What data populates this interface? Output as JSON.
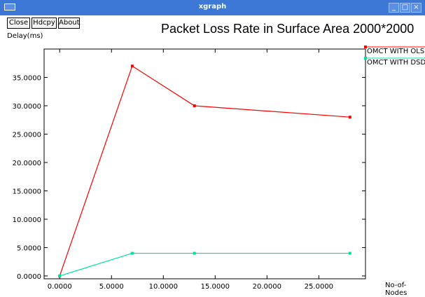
{
  "window": {
    "title": "xgraph"
  },
  "toolbar": {
    "close_label": "Close",
    "hdcpy_label": "Hdcpy",
    "about_label": "About"
  },
  "icons": {
    "minimize": "minimize-icon",
    "maximize": "maximize-icon",
    "close": "close-icon",
    "system_menu": "system-menu-icon"
  },
  "chart_data": {
    "type": "line",
    "title": "Packet Loss Rate in Surface Area 2000*2000",
    "ylabel": "Delay(ms)",
    "xlabel": "No-of-Nodes",
    "xlim": [
      -1.5,
      29.5
    ],
    "ylim": [
      -0.5,
      40
    ],
    "xticks": [
      "0.0000",
      "5.0000",
      "10.0000",
      "15.0000",
      "20.0000",
      "25.0000"
    ],
    "yticks": [
      "0.0000",
      "5.0000",
      "10.0000",
      "15.0000",
      "20.0000",
      "25.0000",
      "30.0000",
      "35.0000"
    ],
    "grid": false,
    "legend_position": "right",
    "series": [
      {
        "name": "OMCT WITH OLS",
        "color": "#ff0000",
        "x": [
          0,
          7,
          13,
          28
        ],
        "y": [
          0,
          37,
          30,
          28
        ]
      },
      {
        "name": "OMCT WITH DSD",
        "color": "#00e0a0",
        "x": [
          0,
          7,
          13,
          28
        ],
        "y": [
          0,
          4,
          4,
          4
        ]
      }
    ]
  }
}
